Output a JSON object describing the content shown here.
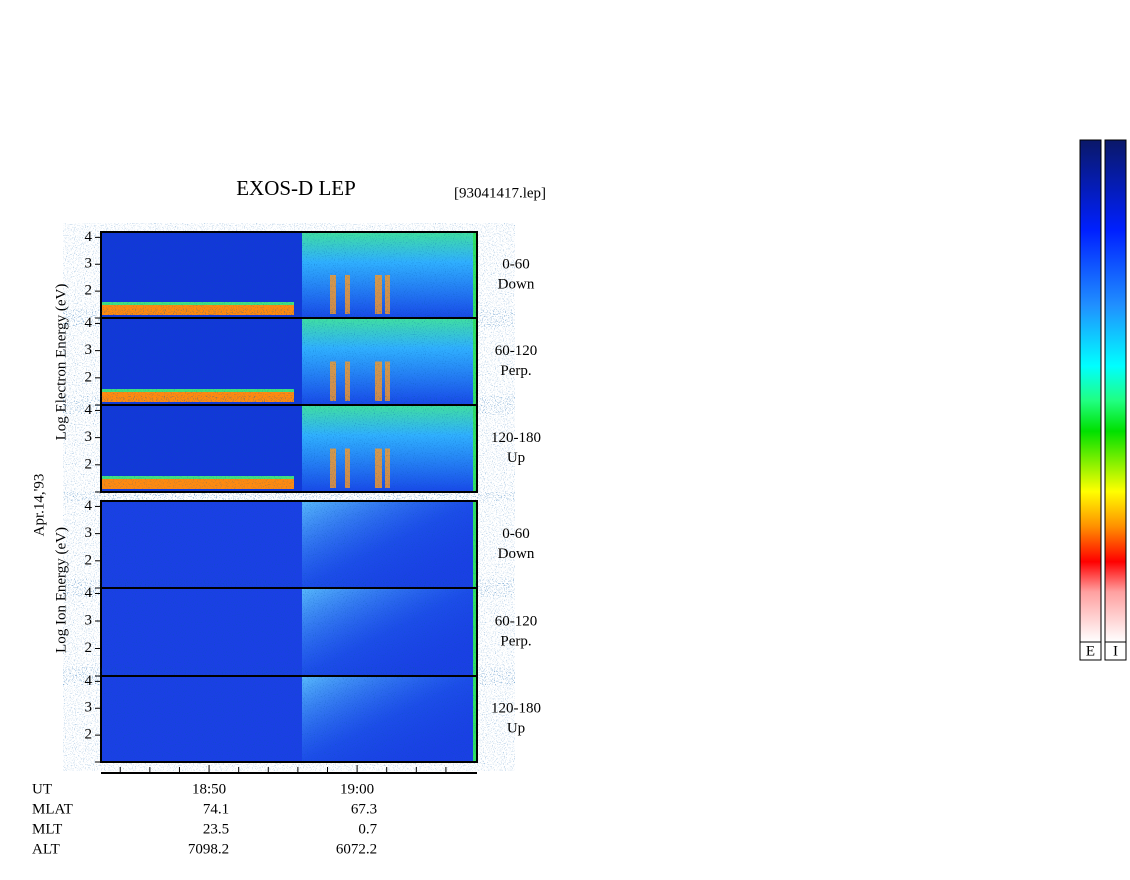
{
  "title": "EXOS-D LEP",
  "file": "[93041417.lep]",
  "date": "Apr.14,'93",
  "electron": {
    "axis_label": "Log Electron Energy (eV)",
    "panels": [
      {
        "angle": "0-60",
        "direction": "Down"
      },
      {
        "angle": "60-120",
        "direction": "Perp."
      },
      {
        "angle": "120-180",
        "direction": "Up"
      }
    ]
  },
  "ion": {
    "axis_label": "Log Ion Energy (eV)",
    "panels": [
      {
        "angle": "0-60",
        "direction": "Down"
      },
      {
        "angle": "60-120",
        "direction": "Perp."
      },
      {
        "angle": "120-180",
        "direction": "Up"
      }
    ]
  },
  "ylim": [
    1,
    4.2
  ],
  "yticks": [
    2,
    3,
    4
  ],
  "minor_yticks": [
    1
  ],
  "xlim": [
    1122.7,
    1148.1
  ],
  "xticks": [
    {
      "value": 1130,
      "label": "18:50"
    },
    {
      "value": 1140,
      "label": "19:00"
    }
  ],
  "minor_xticks": [
    1124,
    1126,
    1128,
    1132,
    1134,
    1136,
    1138,
    1142,
    1144,
    1146
  ],
  "x_label": "UT",
  "orbit": [
    {
      "label": "MLAT",
      "values": [
        74.1,
        67.3
      ]
    },
    {
      "label": "MLT",
      "values": [
        23.5,
        0.7
      ]
    },
    {
      "label": "ALT",
      "values": [
        7098.2,
        6072.2
      ]
    }
  ],
  "colorbars": [
    "E",
    "I"
  ]
}
